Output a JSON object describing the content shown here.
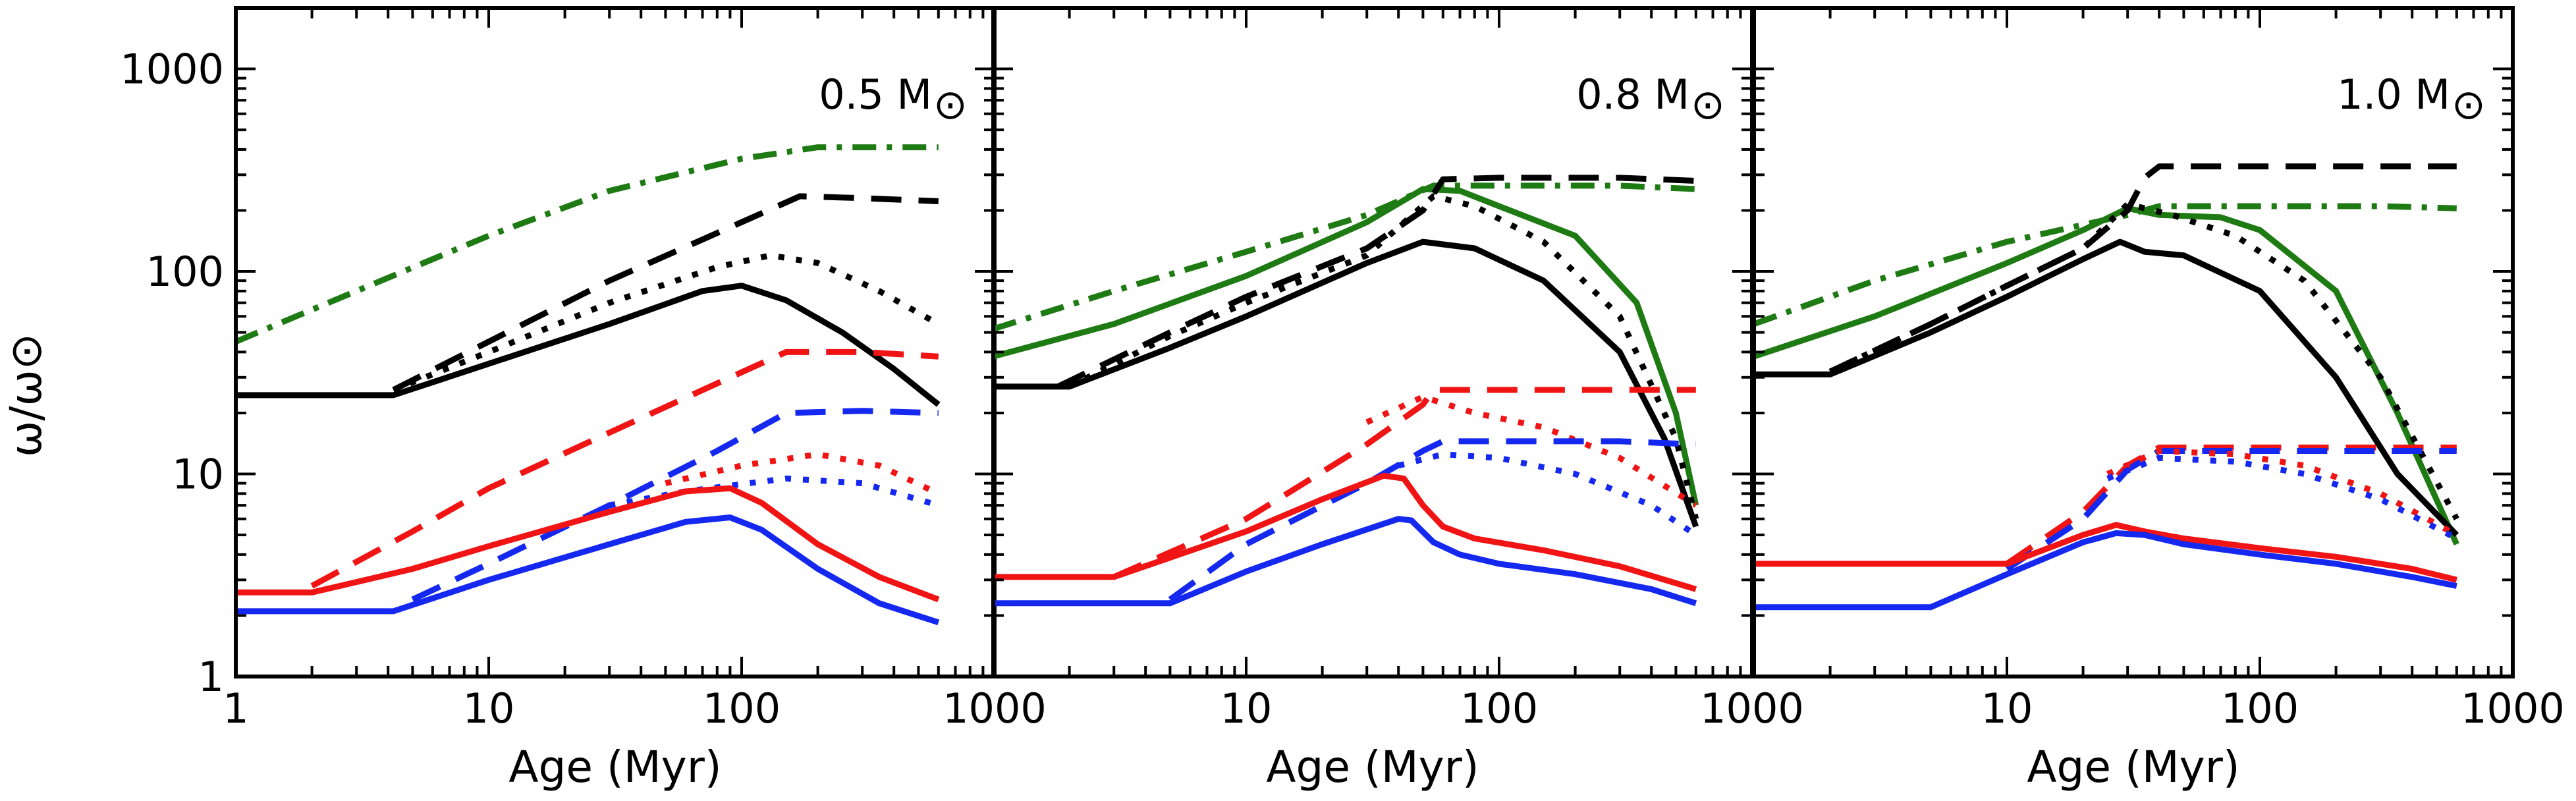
{
  "chart_data": {
    "type": "line",
    "x_scale": "log",
    "y_scale": "log",
    "xlim": [
      1,
      1000
    ],
    "ylim": [
      1,
      2000
    ],
    "ylabel": "ω/ω⊙",
    "y_ticks": [
      {
        "value": 1,
        "label": "1"
      },
      {
        "value": 10,
        "label": "10"
      },
      {
        "value": 100,
        "label": "100"
      },
      {
        "value": 1000,
        "label": "1000"
      }
    ],
    "colors": {
      "black": "#000000",
      "green": "#1e7a12",
      "red": "#f01414",
      "blue": "#1428f0"
    },
    "panels": [
      {
        "name": "0.5",
        "mass_label": "0.5 M",
        "mass_symbol": "⊙",
        "xlabel": "Age (Myr)",
        "x_ticks": [
          {
            "value": 1,
            "label": "1"
          },
          {
            "value": 10,
            "label": "10"
          },
          {
            "value": 100,
            "label": "100"
          },
          {
            "value": 1000,
            "label": "1000"
          }
        ],
        "series": [
          {
            "name": "green-dashdot",
            "color": "green",
            "style": "dashdot",
            "x": [
              1,
              3,
              10,
              30,
              100,
              200,
              400,
              600
            ],
            "y": [
              45,
              80,
              150,
              250,
              360,
              410,
              410,
              410
            ]
          },
          {
            "name": "black-dashed",
            "color": "black",
            "style": "dashed",
            "x": [
              4.2,
              10,
              30,
              100,
              170,
              300,
              600
            ],
            "y": [
              26,
              45,
              90,
              175,
              235,
              230,
              222
            ]
          },
          {
            "name": "black-dotted",
            "color": "black",
            "style": "dotted",
            "x": [
              4.2,
              10,
              30,
              80,
              130,
              200,
              350,
              600
            ],
            "y": [
              26,
              40,
              70,
              105,
              120,
              110,
              80,
              55
            ]
          },
          {
            "name": "black-solid",
            "color": "black",
            "style": "solid",
            "x": [
              1,
              4.2,
              10,
              30,
              70,
              100,
              150,
              250,
              400,
              600
            ],
            "y": [
              24.5,
              24.5,
              35,
              55,
              80,
              85,
              72,
              50,
              33,
              22
            ]
          },
          {
            "name": "red-dashed",
            "color": "red",
            "style": "dashed",
            "x": [
              2,
              5,
              10,
              30,
              80,
              150,
              300,
              600
            ],
            "y": [
              2.8,
              5.2,
              8.5,
              16,
              28,
              40,
              40,
              38
            ]
          },
          {
            "name": "blue-dashed",
            "color": "blue",
            "style": "dashed",
            "x": [
              5,
              10,
              30,
              80,
              150,
              300,
              600
            ],
            "y": [
              2.4,
              3.6,
              7,
              13,
              20,
              20.5,
              20
            ]
          },
          {
            "name": "red-dotted",
            "color": "red",
            "style": "dotted",
            "x": [
              50,
              100,
              200,
              350,
              600
            ],
            "y": [
              9,
              11,
              12.5,
              11,
              8
            ]
          },
          {
            "name": "blue-dotted",
            "color": "blue",
            "style": "dotted",
            "x": [
              30,
              60,
              150,
              300,
              600
            ],
            "y": [
              7,
              8.2,
              9.5,
              9,
              7
            ]
          },
          {
            "name": "red-solid",
            "color": "red",
            "style": "solid",
            "x": [
              1,
              2,
              5,
              10,
              30,
              60,
              90,
              120,
              200,
              350,
              600
            ],
            "y": [
              2.6,
              2.6,
              3.4,
              4.4,
              6.5,
              8.2,
              8.5,
              7.2,
              4.5,
              3.1,
              2.4
            ]
          },
          {
            "name": "blue-solid",
            "color": "blue",
            "style": "solid",
            "x": [
              1,
              4.2,
              10,
              30,
              60,
              90,
              120,
              200,
              350,
              600
            ],
            "y": [
              2.1,
              2.1,
              3.0,
              4.5,
              5.8,
              6.1,
              5.3,
              3.4,
              2.3,
              1.85
            ]
          }
        ]
      },
      {
        "name": "0.8",
        "mass_label": "0.8 M",
        "mass_symbol": "⊙",
        "xlabel": "Age (Myr)",
        "x_ticks": [
          {
            "value": 10,
            "label": "10"
          },
          {
            "value": 100,
            "label": "100"
          },
          {
            "value": 1000,
            "label": "1000"
          }
        ],
        "series": [
          {
            "name": "green-dashdot",
            "color": "green",
            "style": "dashdot",
            "x": [
              1,
              3,
              10,
              30,
              55,
              100,
              300,
              600
            ],
            "y": [
              52,
              80,
              125,
              190,
              265,
              265,
              265,
              255
            ]
          },
          {
            "name": "green-solid",
            "color": "green",
            "style": "solid",
            "x": [
              1,
              3,
              10,
              30,
              50,
              70,
              100,
              200,
              350,
              500,
              600
            ],
            "y": [
              38,
              55,
              95,
              175,
              255,
              250,
              210,
              150,
              70,
              20,
              7
            ]
          },
          {
            "name": "black-dashed",
            "color": "black",
            "style": "dashed",
            "x": [
              1.8,
              5,
              10,
              30,
              50,
              60,
              100,
              300,
              600
            ],
            "y": [
              27,
              50,
              75,
              130,
              200,
              285,
              290,
              290,
              280
            ]
          },
          {
            "name": "black-dotted",
            "color": "black",
            "style": "dotted",
            "x": [
              2,
              5,
              10,
              30,
              55,
              80,
              150,
              300,
              500,
              600
            ],
            "y": [
              27,
              48,
              70,
              120,
              235,
              210,
              140,
              60,
              15,
              6
            ]
          },
          {
            "name": "black-solid",
            "color": "black",
            "style": "solid",
            "x": [
              1,
              2,
              5,
              10,
              30,
              50,
              80,
              150,
              300,
              450,
              600
            ],
            "y": [
              27,
              27,
              42,
              60,
              110,
              140,
              130,
              90,
              40,
              15,
              5.5
            ]
          },
          {
            "name": "red-dashed",
            "color": "red",
            "style": "dashed",
            "x": [
              3,
              10,
              30,
              50,
              55,
              100,
              300,
              600
            ],
            "y": [
              3.1,
              6,
              14,
              22,
              26,
              26,
              26,
              26
            ]
          },
          {
            "name": "red-dotted",
            "color": "red",
            "style": "dotted",
            "x": [
              30,
              50,
              80,
              150,
              300,
              600
            ],
            "y": [
              18,
              24,
              20,
              17,
              12,
              7
            ]
          },
          {
            "name": "blue-dashed",
            "color": "blue",
            "style": "dashed",
            "x": [
              5,
              10,
              30,
              50,
              60,
              100,
              300,
              600
            ],
            "y": [
              2.4,
              4.5,
              9,
              13,
              14.5,
              14.5,
              14.5,
              14
            ]
          },
          {
            "name": "blue-dotted",
            "color": "blue",
            "style": "dotted",
            "x": [
              40,
              60,
              100,
              200,
              400,
              600
            ],
            "y": [
              11,
              12.5,
              12,
              10,
              7,
              5
            ]
          },
          {
            "name": "red-solid",
            "color": "red",
            "style": "solid",
            "x": [
              1,
              3,
              10,
              20,
              35,
              42,
              50,
              60,
              80,
              150,
              300,
              600
            ],
            "y": [
              3.1,
              3.1,
              5.2,
              7.5,
              9.8,
              9.5,
              7,
              5.5,
              4.8,
              4.2,
              3.5,
              2.7
            ]
          },
          {
            "name": "blue-solid",
            "color": "blue",
            "style": "solid",
            "x": [
              1,
              5,
              10,
              20,
              40,
              45,
              55,
              70,
              100,
              200,
              400,
              600
            ],
            "y": [
              2.3,
              2.3,
              3.3,
              4.5,
              6.0,
              5.9,
              4.6,
              4.0,
              3.6,
              3.2,
              2.7,
              2.3
            ]
          }
        ]
      },
      {
        "name": "1.0",
        "mass_label": "1.0 M",
        "mass_symbol": "⊙",
        "xlabel": "Age (Myr)",
        "x_ticks": [
          {
            "value": 10,
            "label": "10"
          },
          {
            "value": 100,
            "label": "100"
          },
          {
            "value": 1000,
            "label": "1000"
          }
        ],
        "series": [
          {
            "name": "green-dashdot",
            "color": "green",
            "style": "dashdot",
            "x": [
              1,
              3,
              10,
              20,
              30,
              40,
              100,
              300,
              600
            ],
            "y": [
              55,
              90,
              140,
              170,
              190,
              210,
              210,
              210,
              205
            ]
          },
          {
            "name": "green-solid",
            "color": "green",
            "style": "solid",
            "x": [
              1,
              3,
              10,
              20,
              30,
              40,
              70,
              100,
              200,
              350,
              600
            ],
            "y": [
              38,
              60,
              110,
              160,
              205,
              190,
              185,
              160,
              80,
              20,
              4.5
            ]
          },
          {
            "name": "black-dashed",
            "color": "black",
            "style": "dashed",
            "x": [
              2,
              5,
              10,
              20,
              30,
              35,
              40,
              100,
              300,
              600
            ],
            "y": [
              32,
              55,
              85,
              130,
              200,
              290,
              330,
              330,
              330,
              330
            ]
          },
          {
            "name": "black-dotted",
            "color": "black",
            "style": "dotted",
            "x": [
              2,
              5,
              10,
              20,
              30,
              45,
              80,
              150,
              300,
              600
            ],
            "y": [
              32,
              55,
              85,
              130,
              215,
              190,
              150,
              90,
              30,
              6
            ]
          },
          {
            "name": "black-solid",
            "color": "black",
            "style": "solid",
            "x": [
              1,
              2,
              5,
              10,
              20,
              28,
              35,
              50,
              100,
              200,
              350,
              600
            ],
            "y": [
              31,
              31,
              50,
              75,
              115,
              140,
              125,
              120,
              80,
              30,
              10,
              5
            ]
          },
          {
            "name": "red-dashed",
            "color": "red",
            "style": "dashed",
            "x": [
              10,
              20,
              30,
              40,
              100,
              300,
              600
            ],
            "y": [
              3.6,
              6.5,
              11,
              13.5,
              13.5,
              13.5,
              13.5
            ]
          },
          {
            "name": "blue-dashed",
            "color": "blue",
            "style": "dashed",
            "x": [
              10,
              20,
              30,
              40,
              100,
              300,
              600
            ],
            "y": [
              3.4,
              6,
              10.5,
              13,
              13,
              13,
              13
            ]
          },
          {
            "name": "red-dotted",
            "color": "red",
            "style": "dotted",
            "x": [
              25,
              40,
              80,
              150,
              300,
              600
            ],
            "y": [
              10,
              13,
              12.5,
              11,
              8,
              5
            ]
          },
          {
            "name": "blue-dotted",
            "color": "blue",
            "style": "dotted",
            "x": [
              25,
              40,
              80,
              150,
              300,
              600
            ],
            "y": [
              9.5,
              12,
              11.5,
              10,
              7.5,
              4.8
            ]
          },
          {
            "name": "red-solid",
            "color": "red",
            "style": "solid",
            "x": [
              1,
              10,
              20,
              27,
              35,
              50,
              100,
              200,
              400,
              600
            ],
            "y": [
              3.6,
              3.6,
              5.0,
              5.6,
              5.2,
              4.8,
              4.3,
              3.9,
              3.4,
              3.0
            ]
          },
          {
            "name": "blue-solid",
            "color": "blue",
            "style": "solid",
            "x": [
              1,
              5,
              10,
              20,
              27,
              35,
              50,
              100,
              200,
              400,
              600
            ],
            "y": [
              2.2,
              2.2,
              3.2,
              4.6,
              5.1,
              5.0,
              4.5,
              4.0,
              3.6,
              3.1,
              2.8
            ]
          }
        ]
      }
    ]
  }
}
